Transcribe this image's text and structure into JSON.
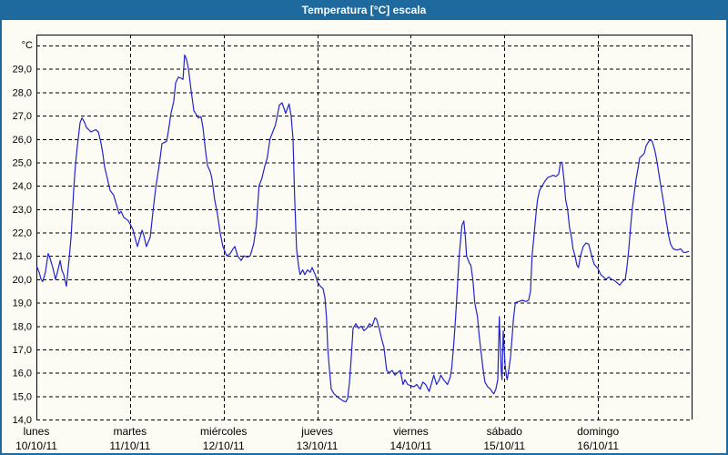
{
  "window": {
    "title": "Temperatura [°C] escala"
  },
  "colors": {
    "title_bar": "#1e699d",
    "window_border": "#1e699d",
    "background": "#fcfcf4",
    "gridline": "#000000",
    "line": "#2323cd",
    "label_text": "#000000"
  },
  "chart_data": {
    "type": "line",
    "title": "Temperatura [°C] escala",
    "grid": "dashed",
    "legend": "none",
    "ylim": [
      14,
      30
    ],
    "y_axis": {
      "unit": "°C",
      "ticks": [
        "29,0",
        "28,0",
        "27,0",
        "26,0",
        "25,0",
        "24,0",
        "23,0",
        "22,0",
        "21,0",
        "20,0",
        "19,0",
        "18,0",
        "17,0",
        "16,0",
        "15,0",
        "14,0"
      ]
    },
    "x_axis": {
      "days": [
        {
          "name": "lunes",
          "date": "10/10/11"
        },
        {
          "name": "martes",
          "date": "11/10/11"
        },
        {
          "name": "miércoles",
          "date": "12/10/11"
        },
        {
          "name": "jueves",
          "date": "13/10/11"
        },
        {
          "name": "viernes",
          "date": "14/10/11"
        },
        {
          "name": "sábado",
          "date": "15/10/11"
        },
        {
          "name": "domingo",
          "date": "16/10/11"
        }
      ]
    },
    "series": [
      {
        "name": "Temperatura",
        "color": "#2323cd",
        "x_unit": "hours_since_monday_00",
        "points": [
          [
            0,
            20.6
          ],
          [
            0.7,
            20.3
          ],
          [
            1.2,
            20.0
          ],
          [
            1.6,
            19.9
          ],
          [
            2.3,
            20.3
          ],
          [
            3.0,
            21.1
          ],
          [
            3.5,
            20.9
          ],
          [
            4.2,
            20.5
          ],
          [
            4.9,
            20.0
          ],
          [
            5.4,
            20.3
          ],
          [
            6.1,
            20.8
          ],
          [
            6.5,
            20.4
          ],
          [
            7.0,
            20.2
          ],
          [
            7.7,
            19.7
          ],
          [
            8.4,
            20.9
          ],
          [
            8.9,
            21.8
          ],
          [
            9.6,
            23.9
          ],
          [
            10.0,
            24.9
          ],
          [
            10.5,
            25.7
          ],
          [
            11.2,
            26.7
          ],
          [
            11.7,
            26.9
          ],
          [
            12.4,
            26.7
          ],
          [
            12.8,
            26.5
          ],
          [
            14.0,
            26.3
          ],
          [
            15.2,
            26.4
          ],
          [
            15.9,
            26.3
          ],
          [
            16.6,
            25.8
          ],
          [
            17.0,
            25.4
          ],
          [
            17.5,
            24.8
          ],
          [
            18.2,
            24.3
          ],
          [
            18.9,
            23.8
          ],
          [
            19.8,
            23.6
          ],
          [
            20.5,
            23.2
          ],
          [
            21.2,
            22.8
          ],
          [
            21.7,
            22.9
          ],
          [
            22.4,
            22.65
          ],
          [
            23.6,
            22.5
          ],
          [
            24.7,
            22.15
          ],
          [
            25.4,
            21.7
          ],
          [
            25.9,
            21.4
          ],
          [
            27.1,
            22.1
          ],
          [
            27.5,
            21.9
          ],
          [
            28.2,
            21.4
          ],
          [
            29.2,
            21.8
          ],
          [
            29.9,
            22.9
          ],
          [
            30.6,
            23.9
          ],
          [
            31.5,
            24.9
          ],
          [
            32.2,
            25.8
          ],
          [
            33.4,
            25.9
          ],
          [
            33.8,
            26.3
          ],
          [
            34.5,
            27.1
          ],
          [
            35.2,
            27.6
          ],
          [
            35.7,
            28.4
          ],
          [
            36.4,
            28.65
          ],
          [
            37.1,
            28.6
          ],
          [
            37.6,
            28.55
          ],
          [
            38.0,
            29.6
          ],
          [
            38.5,
            29.4
          ],
          [
            39.0,
            29.0
          ],
          [
            39.7,
            28.05
          ],
          [
            40.4,
            27.2
          ],
          [
            40.8,
            27.1
          ],
          [
            41.5,
            26.9
          ],
          [
            42.2,
            26.95
          ],
          [
            42.7,
            26.5
          ],
          [
            43.4,
            25.45
          ],
          [
            43.9,
            24.85
          ],
          [
            44.6,
            24.6
          ],
          [
            45.0,
            24.3
          ],
          [
            45.7,
            23.4
          ],
          [
            46.4,
            22.8
          ],
          [
            47.1,
            22.0
          ],
          [
            47.8,
            21.4
          ],
          [
            48.8,
            21.0
          ],
          [
            49.7,
            21.1
          ],
          [
            50.4,
            21.3
          ],
          [
            50.9,
            21.4
          ],
          [
            51.6,
            21.0
          ],
          [
            52.5,
            20.8
          ],
          [
            53.2,
            21.0
          ],
          [
            54.1,
            20.95
          ],
          [
            54.8,
            21.0
          ],
          [
            55.7,
            21.5
          ],
          [
            56.4,
            22.3
          ],
          [
            57.1,
            24.0
          ],
          [
            57.8,
            24.3
          ],
          [
            58.5,
            24.8
          ],
          [
            59.2,
            25.2
          ],
          [
            59.9,
            26.0
          ],
          [
            60.6,
            26.3
          ],
          [
            61.3,
            26.6
          ],
          [
            62.3,
            27.45
          ],
          [
            63.0,
            27.55
          ],
          [
            63.9,
            27.1
          ],
          [
            64.8,
            27.5
          ],
          [
            65.3,
            27.0
          ],
          [
            65.8,
            26.0
          ],
          [
            66.2,
            23.6
          ],
          [
            66.7,
            21.3
          ],
          [
            67.2,
            20.6
          ],
          [
            67.6,
            20.2
          ],
          [
            68.3,
            20.4
          ],
          [
            68.8,
            20.2
          ],
          [
            69.5,
            20.4
          ],
          [
            70.2,
            20.3
          ],
          [
            70.7,
            20.5
          ],
          [
            71.6,
            20.15
          ],
          [
            72.0,
            19.9
          ],
          [
            72.8,
            19.7
          ],
          [
            73.5,
            19.6
          ],
          [
            74.0,
            19.2
          ],
          [
            74.4,
            18.3
          ],
          [
            74.7,
            17.1
          ],
          [
            75.1,
            16.2
          ],
          [
            75.6,
            15.3
          ],
          [
            76.3,
            15.1
          ],
          [
            77.0,
            15.0
          ],
          [
            77.7,
            14.9
          ],
          [
            78.6,
            14.8
          ],
          [
            79.3,
            14.75
          ],
          [
            79.8,
            14.9
          ],
          [
            80.3,
            15.6
          ],
          [
            80.7,
            16.6
          ],
          [
            81.2,
            17.9
          ],
          [
            81.9,
            18.1
          ],
          [
            82.6,
            17.9
          ],
          [
            83.3,
            18.0
          ],
          [
            84.0,
            17.8
          ],
          [
            84.7,
            17.9
          ],
          [
            85.4,
            18.1
          ],
          [
            86.1,
            18.0
          ],
          [
            86.8,
            18.35
          ],
          [
            87.2,
            18.3
          ],
          [
            87.9,
            17.9
          ],
          [
            88.6,
            17.4
          ],
          [
            89.1,
            17.1
          ],
          [
            89.8,
            16.1
          ],
          [
            90.5,
            16.0
          ],
          [
            91.2,
            16.1
          ],
          [
            91.9,
            15.9
          ],
          [
            92.6,
            16.0
          ],
          [
            93.3,
            16.1
          ],
          [
            94.0,
            15.5
          ],
          [
            94.5,
            15.7
          ],
          [
            95.2,
            15.5
          ],
          [
            96.0,
            15.45
          ],
          [
            96.8,
            15.4
          ],
          [
            97.5,
            15.5
          ],
          [
            98.4,
            15.3
          ],
          [
            99.1,
            15.6
          ],
          [
            99.8,
            15.5
          ],
          [
            100.7,
            15.2
          ],
          [
            101.4,
            15.6
          ],
          [
            101.9,
            15.9
          ],
          [
            102.6,
            15.5
          ],
          [
            103.3,
            15.7
          ],
          [
            103.7,
            15.9
          ],
          [
            104.4,
            15.7
          ],
          [
            105.4,
            15.5
          ],
          [
            106.1,
            15.8
          ],
          [
            106.5,
            16.2
          ],
          [
            107.0,
            17.2
          ],
          [
            107.5,
            18.4
          ],
          [
            107.9,
            19.5
          ],
          [
            108.4,
            21.0
          ],
          [
            109.1,
            22.3
          ],
          [
            109.6,
            22.5
          ],
          [
            110.0,
            21.8
          ],
          [
            110.3,
            21.0
          ],
          [
            111.0,
            20.7
          ],
          [
            111.4,
            20.6
          ],
          [
            111.9,
            20.0
          ],
          [
            112.4,
            19.0
          ],
          [
            113.1,
            18.4
          ],
          [
            113.5,
            17.65
          ],
          [
            114.0,
            16.9
          ],
          [
            114.5,
            16.2
          ],
          [
            115.0,
            15.6
          ],
          [
            115.7,
            15.4
          ],
          [
            116.4,
            15.3
          ],
          [
            116.8,
            15.2
          ],
          [
            117.3,
            15.1
          ],
          [
            117.8,
            15.3
          ],
          [
            118.3,
            15.7
          ],
          [
            118.7,
            18.4
          ],
          [
            119.2,
            16.0
          ],
          [
            119.4,
            15.7
          ],
          [
            119.7,
            17.8
          ],
          [
            120.2,
            16.3
          ],
          [
            120.5,
            15.9
          ],
          [
            120.7,
            15.7
          ],
          [
            121.2,
            16.2
          ],
          [
            121.6,
            16.7
          ],
          [
            122.1,
            17.8
          ],
          [
            122.3,
            18.25
          ],
          [
            122.8,
            19.0
          ],
          [
            123.7,
            19.05
          ],
          [
            124.6,
            19.1
          ],
          [
            125.5,
            19.05
          ],
          [
            126.2,
            19.1
          ],
          [
            126.7,
            19.5
          ],
          [
            127.1,
            21.0
          ],
          [
            127.6,
            21.9
          ],
          [
            128.1,
            22.8
          ],
          [
            128.5,
            23.4
          ],
          [
            129.0,
            23.8
          ],
          [
            129.7,
            24.0
          ],
          [
            130.4,
            24.2
          ],
          [
            131.1,
            24.35
          ],
          [
            131.8,
            24.4
          ],
          [
            132.5,
            24.45
          ],
          [
            133.2,
            24.4
          ],
          [
            133.9,
            24.5
          ],
          [
            134.4,
            25.0
          ],
          [
            134.8,
            25.0
          ],
          [
            135.3,
            24.2
          ],
          [
            135.7,
            23.4
          ],
          [
            136.2,
            23.0
          ],
          [
            136.7,
            22.2
          ],
          [
            137.2,
            21.8
          ],
          [
            137.6,
            21.3
          ],
          [
            138.1,
            21.0
          ],
          [
            138.6,
            20.6
          ],
          [
            139.0,
            20.5
          ],
          [
            139.5,
            21.0
          ],
          [
            140.2,
            21.4
          ],
          [
            140.9,
            21.55
          ],
          [
            141.6,
            21.5
          ],
          [
            142.3,
            21.05
          ],
          [
            143.0,
            20.65
          ],
          [
            143.5,
            20.55
          ],
          [
            144.0,
            20.45
          ],
          [
            144.7,
            20.2
          ],
          [
            145.4,
            20.1
          ],
          [
            146.1,
            20.0
          ],
          [
            146.8,
            20.1
          ],
          [
            147.5,
            20.0
          ],
          [
            148.2,
            19.95
          ],
          [
            148.9,
            19.85
          ],
          [
            149.6,
            19.75
          ],
          [
            150.3,
            19.9
          ],
          [
            151.0,
            20.0
          ],
          [
            151.4,
            20.5
          ],
          [
            151.9,
            21.3
          ],
          [
            152.4,
            22.3
          ],
          [
            152.8,
            23.05
          ],
          [
            153.3,
            23.7
          ],
          [
            153.8,
            24.3
          ],
          [
            154.2,
            24.7
          ],
          [
            154.7,
            25.2
          ],
          [
            155.4,
            25.3
          ],
          [
            155.9,
            25.4
          ],
          [
            156.3,
            25.7
          ],
          [
            157.0,
            25.9
          ],
          [
            157.5,
            25.95
          ],
          [
            157.9,
            25.9
          ],
          [
            158.6,
            25.5
          ],
          [
            159.1,
            25.05
          ],
          [
            159.8,
            24.3
          ],
          [
            160.3,
            23.8
          ],
          [
            161.0,
            23.1
          ],
          [
            161.5,
            22.5
          ],
          [
            162.2,
            21.8
          ],
          [
            162.6,
            21.5
          ],
          [
            163.3,
            21.3
          ],
          [
            164.3,
            21.25
          ],
          [
            165.2,
            21.3
          ],
          [
            165.9,
            21.15
          ],
          [
            166.6,
            21.15
          ],
          [
            167.3,
            21.2
          ]
        ]
      }
    ]
  }
}
